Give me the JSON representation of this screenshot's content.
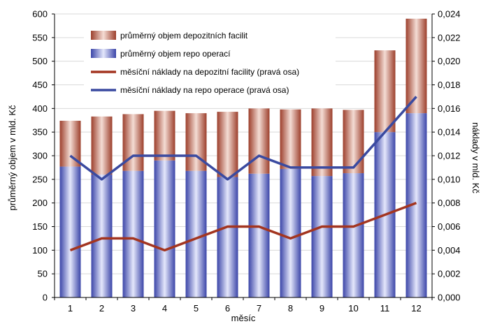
{
  "chart_data": {
    "type": "bar",
    "categories": [
      "1",
      "2",
      "3",
      "4",
      "5",
      "6",
      "7",
      "8",
      "9",
      "10",
      "11",
      "12"
    ],
    "xlabel": "měsíc",
    "ylabel": "průměrný objem v mld. Kč",
    "y2label": "náklady v mld. Kč",
    "ylim": [
      0,
      600
    ],
    "y2lim": [
      0,
      0.024
    ],
    "y_ticks": [
      "0",
      "50",
      "100",
      "150",
      "200",
      "250",
      "300",
      "350",
      "400",
      "450",
      "500",
      "550",
      "600"
    ],
    "y2_ticks": [
      "0,000",
      "0,002",
      "0,004",
      "0,006",
      "0,008",
      "0,010",
      "0,012",
      "0,014",
      "0,016",
      "0,018",
      "0,020",
      "0,022",
      "0,024"
    ],
    "grid": true,
    "legend_position": "top-left inside plot",
    "stacked_bars": [
      {
        "name": "průměrný objem repo operací",
        "axis": "left",
        "color": "#4a52b0",
        "values": [
          277,
          260,
          268,
          290,
          268,
          255,
          262,
          272,
          257,
          263,
          350,
          390
        ]
      },
      {
        "name": "průměrný objem depozitních facilit",
        "axis": "left",
        "color": "#a04a3a",
        "values": [
          97,
          123,
          120,
          105,
          122,
          138,
          138,
          126,
          143,
          134,
          173,
          200
        ]
      }
    ],
    "lines": [
      {
        "name": "měsíční náklady na depozitní facility (pravá osa)",
        "axis": "right",
        "color": "#a33520",
        "values": [
          0.004,
          0.005,
          0.005,
          0.004,
          0.005,
          0.006,
          0.006,
          0.005,
          0.006,
          0.006,
          0.007,
          0.008
        ]
      },
      {
        "name": "měsíční náklady na repo operace (pravá osa)",
        "axis": "right",
        "color": "#3a4aa0",
        "values": [
          0.012,
          0.01,
          0.012,
          0.012,
          0.012,
          0.01,
          0.012,
          0.011,
          0.011,
          0.011,
          0.014,
          0.017
        ]
      }
    ],
    "legend_order": [
      "průměrný objem depozitních facilit",
      "průměrný objem repo operací",
      "měsíční náklady na depozitní facility (pravá osa)",
      "měsíční náklady na repo operace (pravá osa)"
    ]
  }
}
